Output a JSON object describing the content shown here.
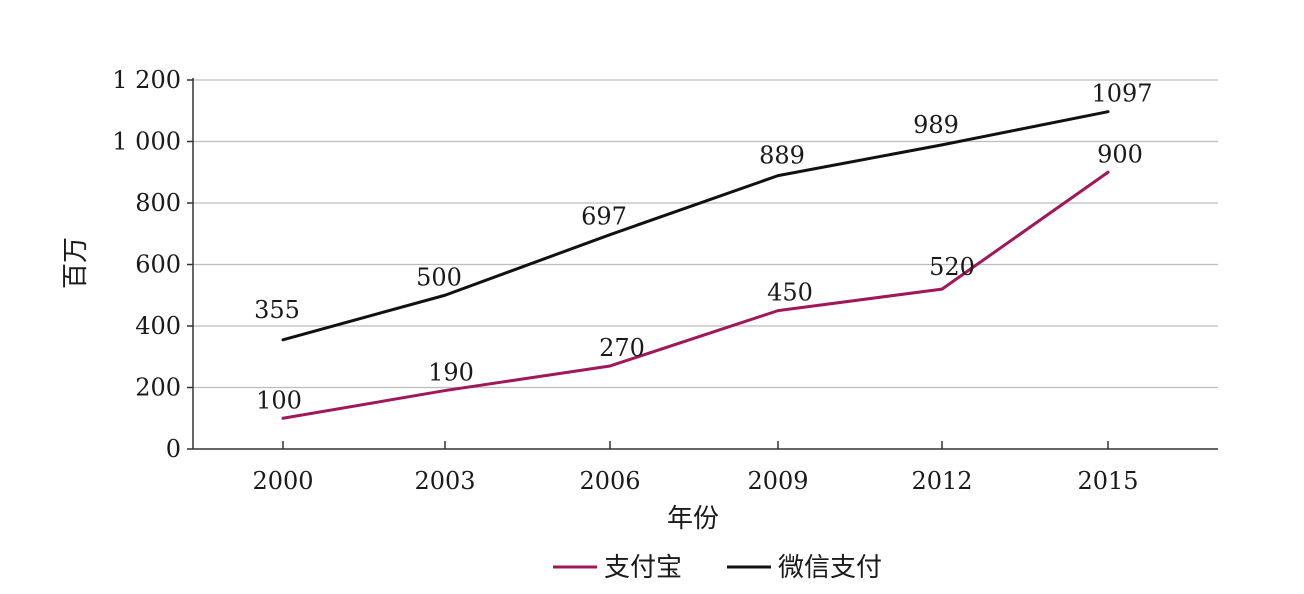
{
  "chart_data": {
    "type": "line",
    "title": "",
    "xlabel": "年份",
    "ylabel": "百万",
    "x": [
      "2000",
      "2003",
      "2006",
      "2009",
      "2012",
      "2015"
    ],
    "ylim": [
      0,
      1200
    ],
    "yticks": [
      0,
      200,
      400,
      600,
      800,
      1000,
      1200
    ],
    "ytick_labels": [
      "0",
      "200",
      "400",
      "600",
      "800",
      "1 000",
      "1 200"
    ],
    "grid": true,
    "legend": "bottom-center",
    "series": [
      {
        "name": "支付宝",
        "color": "#a0185a",
        "values": [
          100,
          190,
          270,
          450,
          520,
          900
        ],
        "labels": [
          "100",
          "190",
          "270",
          "450",
          "520",
          "900"
        ]
      },
      {
        "name": "微信支付",
        "color": "#111111",
        "values": [
          355,
          500,
          697,
          889,
          989,
          1097
        ],
        "labels": [
          "355",
          "500",
          "697",
          "889",
          "989",
          "1097"
        ]
      }
    ]
  }
}
